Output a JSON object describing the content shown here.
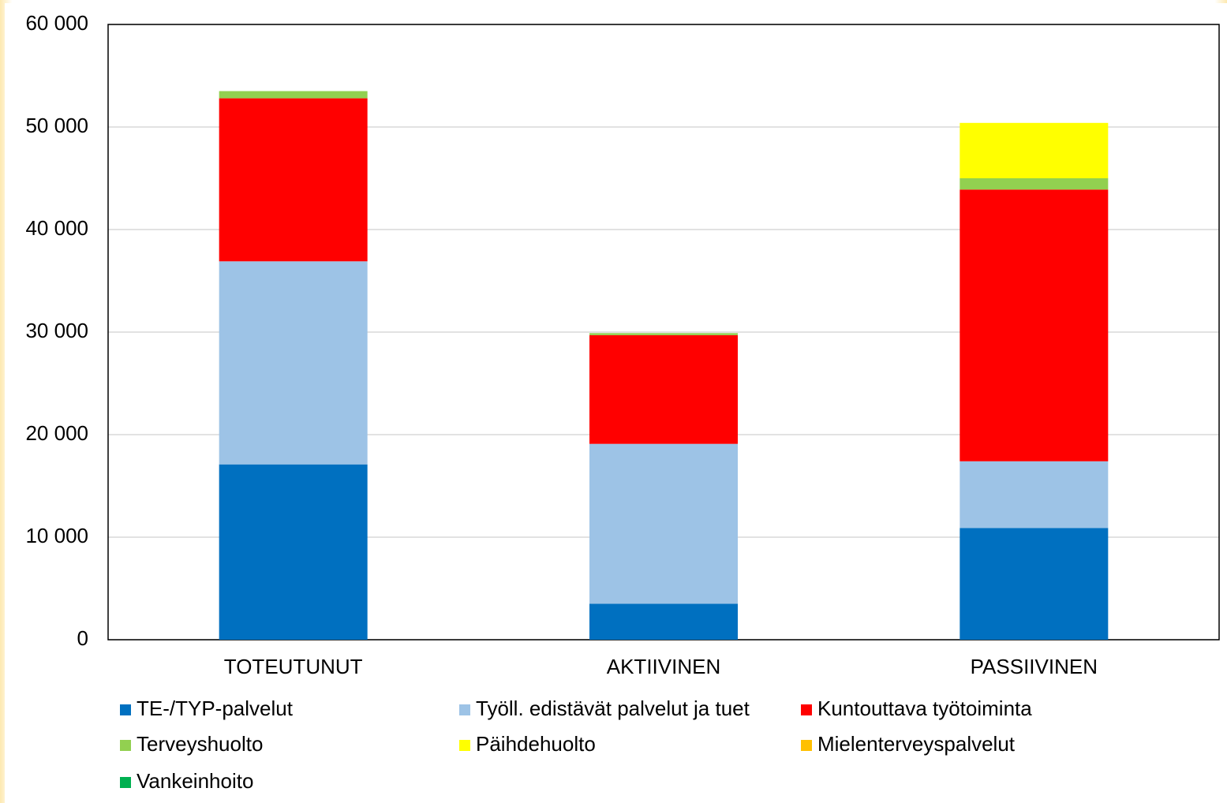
{
  "chart_data": {
    "type": "stacked_bar",
    "categories": [
      "TOTEUTUNUT",
      "AKTIIVINEN",
      "PASSIIVINEN"
    ],
    "series": [
      {
        "name": "TE-/TYP-palvelut",
        "color": "#0070c0",
        "values": [
          17100,
          3500,
          10900
        ]
      },
      {
        "name": "Työll. edistävät palvelut ja tuet",
        "color": "#9dc3e6",
        "values": [
          19800,
          15600,
          6500
        ]
      },
      {
        "name": "Kuntouttava työtoiminta",
        "color": "#ff0000",
        "values": [
          15900,
          10600,
          26500
        ]
      },
      {
        "name": "Terveyshuolto",
        "color": "#92d050",
        "values": [
          700,
          200,
          1100
        ]
      },
      {
        "name": "Päihdehuolto",
        "color": "#ffff00",
        "values": [
          0,
          0,
          5400
        ]
      },
      {
        "name": "Mielenterveyspalvelut",
        "color": "#ffc000",
        "values": [
          0,
          0,
          0
        ]
      },
      {
        "name": "Vankeinhoito",
        "color": "#00b050",
        "values": [
          0,
          0,
          0
        ]
      }
    ],
    "ylim": [
      0,
      60000
    ],
    "yticks": [
      0,
      {
        "value": 10000,
        "label": "10 000"
      },
      {
        "value": 20000,
        "label": "20 000"
      },
      {
        "value": 30000,
        "label": "30 000"
      },
      {
        "value": 40000,
        "label": "40 000"
      },
      {
        "value": 50000,
        "label": "50 000"
      },
      {
        "value": 60000,
        "label": "60 000"
      }
    ],
    "grid": true,
    "legend": "bottom"
  }
}
